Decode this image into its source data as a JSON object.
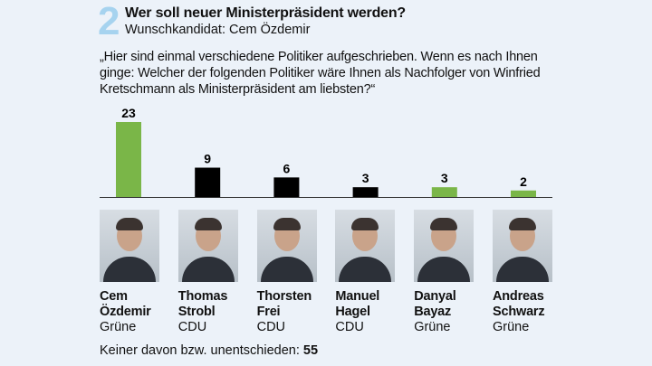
{
  "header": {
    "number": "2",
    "title": "Wer soll neuer Ministerpräsident werden?",
    "subtitle": "Wunschkandidat: Cem Özdemir",
    "question": "„Hier sind einmal verschiedene Politiker aufgeschrieben. Wenn es nach Ihnen ginge: Welcher der folgenden Politiker wäre Ihnen als Nachfolger von Winfried Kretschmann als Ministerpräsident am liebsten?“"
  },
  "colors": {
    "Grüne": "#7ab648",
    "CDU": "#000000",
    "accent_number": "#a6d3ef",
    "background": "#ecf2f9"
  },
  "chart_data": {
    "type": "bar",
    "categories": [
      "Cem Özdemir",
      "Thomas Strobl",
      "Thorsten Frei",
      "Manuel Hagel",
      "Danyal Bayaz",
      "Andreas Schwarz"
    ],
    "values": [
      23,
      9,
      6,
      3,
      3,
      2
    ],
    "labels": [
      "23",
      "9",
      "6",
      "3",
      "3",
      "2"
    ],
    "parties": [
      "Grüne",
      "CDU",
      "CDU",
      "CDU",
      "Grüne",
      "Grüne"
    ],
    "ylim": [
      0,
      23
    ],
    "grid": false
  },
  "candidates": [
    {
      "first": "Cem",
      "last": "Özdemir",
      "party": "Grüne"
    },
    {
      "first": "Thomas",
      "last": "Strobl",
      "party": "CDU"
    },
    {
      "first": "Thorsten",
      "last": "Frei",
      "party": "CDU"
    },
    {
      "first": "Manuel",
      "last": "Hagel",
      "party": "CDU"
    },
    {
      "first": "Danyal",
      "last": "Bayaz",
      "party": "Grüne"
    },
    {
      "first": "Andreas",
      "last": "Schwarz",
      "party": "Grüne"
    }
  ],
  "footer": {
    "label": "Keiner davon bzw. unentschieden:",
    "value": "55"
  }
}
